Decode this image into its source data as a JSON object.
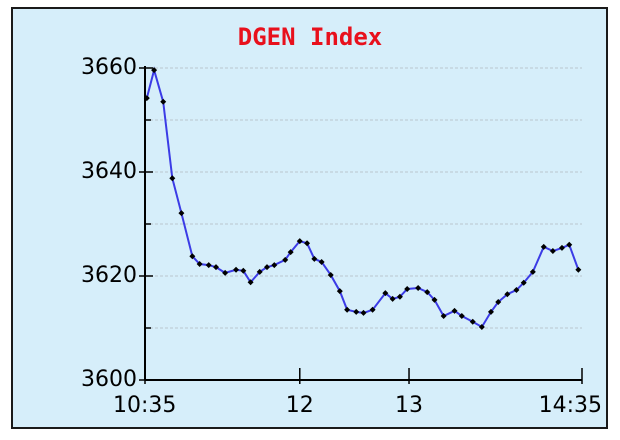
{
  "chart_data": {
    "type": "line",
    "title": "DGEN Index",
    "x": [
      636,
      640,
      645,
      650,
      655,
      661,
      665,
      670,
      674,
      679,
      685,
      689,
      693,
      698,
      702,
      706,
      712,
      715,
      720,
      724,
      728,
      732,
      737,
      742,
      746,
      751,
      755,
      760,
      767,
      771,
      775,
      779,
      785,
      790,
      794,
      799,
      805,
      809,
      815,
      820,
      825,
      829,
      834,
      839,
      843,
      848,
      854,
      859,
      864,
      868,
      873
    ],
    "series": [
      {
        "name": "DGEN Index",
        "color": "#3b3be6",
        "marker_color": "#000000",
        "values": [
          3654.2,
          3659.6,
          3653.5,
          3638.8,
          3632.1,
          3623.8,
          3622.3,
          3622.1,
          3621.7,
          3620.6,
          3621.2,
          3621.0,
          3618.8,
          3620.8,
          3621.7,
          3622.1,
          3623.1,
          3624.6,
          3626.7,
          3626.3,
          3623.3,
          3622.7,
          3620.2,
          3617.1,
          3613.5,
          3613.1,
          3612.9,
          3613.5,
          3616.7,
          3615.6,
          3616.0,
          3617.5,
          3617.7,
          3616.9,
          3615.4,
          3612.3,
          3613.3,
          3612.3,
          3611.2,
          3610.2,
          3613.1,
          3615.0,
          3616.5,
          3617.3,
          3618.7,
          3620.8,
          3625.6,
          3624.8,
          3625.4,
          3626.0,
          3621.2
        ]
      }
    ],
    "xlim": [
      635,
      875
    ],
    "xticks": [
      {
        "value": 635,
        "label": "10:35"
      },
      {
        "value": 720,
        "label": "12"
      },
      {
        "value": 780,
        "label": "13"
      },
      {
        "value": 875,
        "label": "14:35"
      }
    ],
    "ylim": [
      3600,
      3660
    ],
    "yticks": [
      3600,
      3620,
      3640,
      3660
    ],
    "minor_yticks": [
      3610,
      3630,
      3650
    ],
    "grid": true
  }
}
